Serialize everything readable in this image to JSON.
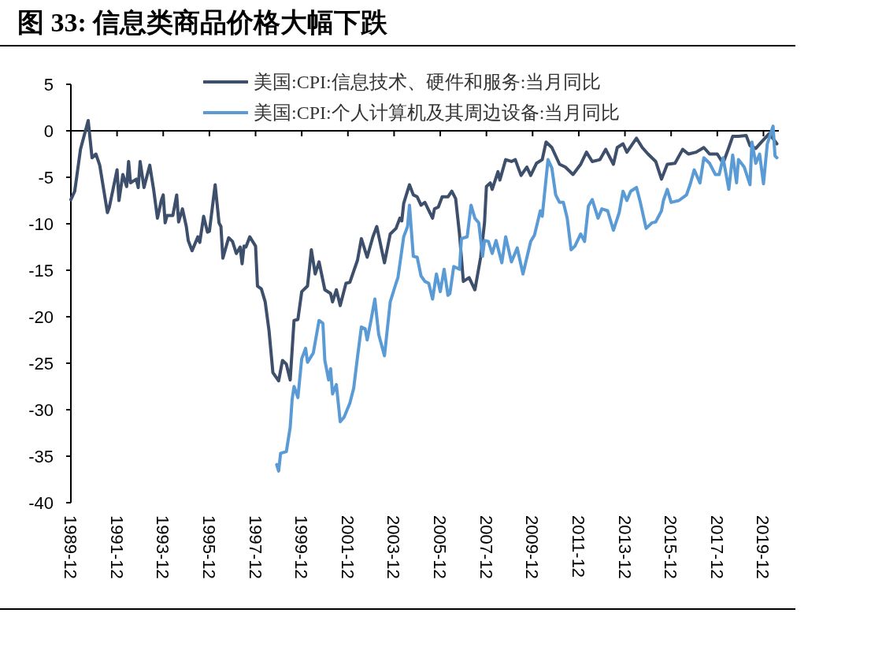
{
  "chart_data": {
    "type": "line",
    "title": "图 33: 信息类商品价格大幅下跌",
    "xlim": [
      "1989-12",
      "2020-08"
    ],
    "ylim": [
      -40,
      5
    ],
    "yticks": [
      -40,
      -35,
      -30,
      -25,
      -20,
      -15,
      -10,
      -5,
      0,
      5
    ],
    "xticks": [
      "1989-12",
      "1991-12",
      "1993-12",
      "1995-12",
      "1997-12",
      "1999-12",
      "2001-12",
      "2003-12",
      "2005-12",
      "2007-12",
      "2009-12",
      "2011-12",
      "2013-12",
      "2015-12",
      "2017-12",
      "2019-12"
    ],
    "legend": "top",
    "marker": "none",
    "line_style": "solid",
    "series": [
      {
        "name": "美国:CPI:信息技术、硬件和服务:当月同比",
        "color": "#3d4f6b",
        "x": [
          "1989-12",
          "1990-02",
          "1990-05",
          "1990-09",
          "1990-11",
          "1991-01",
          "1991-03",
          "1991-07",
          "1991-08",
          "1991-12",
          "1992-01",
          "1992-03",
          "1992-05",
          "1992-06",
          "1992-07",
          "1992-10",
          "1992-11",
          "1992-12",
          "1993-02",
          "1993-05",
          "1993-07",
          "1993-09",
          "1993-11",
          "1993-12",
          "1994-01",
          "1994-02",
          "1994-05",
          "1994-07",
          "1994-08",
          "1994-10",
          "1994-12",
          "1995-01",
          "1995-03",
          "1995-06",
          "1995-07",
          "1995-09",
          "1995-11",
          "1995-12",
          "1996-03",
          "1996-05",
          "1996-06",
          "1996-07",
          "1996-10",
          "1996-12",
          "1997-02",
          "1997-04",
          "1997-05",
          "1997-06",
          "1997-07",
          "1997-09",
          "1997-12",
          "1998-01",
          "1998-03",
          "1998-05",
          "1998-07",
          "1998-09",
          "1998-12",
          "1999-02",
          "1999-04",
          "1999-06",
          "1999-08",
          "1999-10",
          "1999-12",
          "2000-03",
          "2000-05",
          "2000-07",
          "2000-09",
          "2000-12",
          "2001-03",
          "2001-04",
          "2001-06",
          "2001-08",
          "2001-11",
          "2002-01",
          "2002-05",
          "2002-07",
          "2002-10",
          "2003-01",
          "2003-03",
          "2003-07",
          "2003-10",
          "2004-01",
          "2004-03",
          "2004-04",
          "2004-05",
          "2004-08",
          "2004-10",
          "2004-12",
          "2005-02",
          "2005-04",
          "2005-08",
          "2005-09",
          "2005-11",
          "2006-01",
          "2006-04",
          "2006-06",
          "2006-08",
          "2006-10",
          "2006-12",
          "2007-03",
          "2007-06",
          "2007-09",
          "2007-11",
          "2007-12",
          "2008-02",
          "2008-03",
          "2008-06",
          "2008-07",
          "2008-10",
          "2009-01",
          "2009-03",
          "2009-06",
          "2009-09",
          "2009-11",
          "2010-02",
          "2010-05",
          "2010-07",
          "2010-10",
          "2011-02",
          "2011-05",
          "2011-09",
          "2012-01",
          "2012-04",
          "2012-07",
          "2012-11",
          "2013-02",
          "2013-06",
          "2013-08",
          "2013-11",
          "2014-01",
          "2014-06",
          "2014-09",
          "2014-12",
          "2015-04",
          "2015-07",
          "2015-10",
          "2016-02",
          "2016-06",
          "2016-09",
          "2017-01",
          "2017-05",
          "2017-08",
          "2017-12",
          "2018-03",
          "2018-06",
          "2018-08",
          "2018-11",
          "2019-03",
          "2019-05",
          "2019-08",
          "2019-11",
          "2020-03",
          "2020-07"
        ],
        "values": [
          -7.4,
          -6.5,
          -2.0,
          1.1,
          -2.9,
          -2.5,
          -3.7,
          -8.8,
          -8.2,
          -4.2,
          -7.5,
          -4.7,
          -6.0,
          -3.3,
          -5.6,
          -5.2,
          -6.1,
          -3.3,
          -6.1,
          -3.7,
          -6.3,
          -9.4,
          -7.5,
          -6.9,
          -9.9,
          -9.1,
          -9.1,
          -6.9,
          -9.8,
          -8.4,
          -10.3,
          -11.8,
          -12.9,
          -11.4,
          -12.0,
          -9.2,
          -10.9,
          -10.8,
          -5.8,
          -9.9,
          -10.3,
          -13.7,
          -11.5,
          -11.9,
          -13.2,
          -12.5,
          -14.3,
          -12.4,
          -12.5,
          -11.4,
          -12.4,
          -16.7,
          -17.0,
          -18.4,
          -21.5,
          -26.0,
          -26.9,
          -24.7,
          -25.1,
          -26.8,
          -20.4,
          -20.3,
          -17.3,
          -16.7,
          -12.8,
          -15.4,
          -14.1,
          -17.1,
          -17.5,
          -18.4,
          -17.1,
          -18.8,
          -16.4,
          -16.3,
          -13.9,
          -11.6,
          -13.6,
          -11.4,
          -10.3,
          -14.2,
          -11.1,
          -10.5,
          -9.4,
          -9.7,
          -7.8,
          -5.8,
          -6.9,
          -7.1,
          -8.0,
          -7.7,
          -9.4,
          -8.4,
          -8.2,
          -7.1,
          -7.1,
          -6.5,
          -7.3,
          -11.1,
          -16.2,
          -15.8,
          -17.1,
          -13.6,
          -9.9,
          -6.0,
          -5.6,
          -6.3,
          -4.4,
          -5.3,
          -3.1,
          -3.3,
          -3.1,
          -4.8,
          -3.9,
          -4.8,
          -3.5,
          -3.1,
          -1.2,
          -1.8,
          -3.6,
          -3.9,
          -4.7,
          -3.6,
          -2.3,
          -3.3,
          -3.1,
          -2.0,
          -3.6,
          -1.8,
          -1.4,
          -2.3,
          -0.8,
          -1.8,
          -2.5,
          -3.3,
          -5.2,
          -3.6,
          -3.5,
          -2.0,
          -2.5,
          -2.3,
          -1.8,
          -2.5,
          -2.5,
          -3.5,
          -1.8,
          -0.6,
          -0.6,
          -0.5,
          -1.6,
          -1.9,
          -1.2,
          -0.3,
          -1.4
        ]
      },
      {
        "name": "美国:CPI:个人计算机及其周边设备:当月同比",
        "color": "#5b9bd5",
        "x": [
          "1998-11",
          "1998-12",
          "1999-01",
          "1999-04",
          "1999-06",
          "1999-07",
          "1999-08",
          "1999-10",
          "1999-12",
          "2000-02",
          "2000-03",
          "2000-06",
          "2000-09",
          "2000-11",
          "2000-12",
          "2001-02",
          "2001-03",
          "2001-04",
          "2001-06",
          "2001-08",
          "2001-10",
          "2002-01",
          "2002-03",
          "2002-05",
          "2002-07",
          "2002-09",
          "2002-10",
          "2002-12",
          "2003-02",
          "2003-04",
          "2003-07",
          "2003-10",
          "2004-01",
          "2004-02",
          "2004-05",
          "2004-07",
          "2004-08",
          "2004-10",
          "2004-12",
          "2005-02",
          "2005-04",
          "2005-06",
          "2005-08",
          "2005-10",
          "2005-12",
          "2006-02",
          "2006-04",
          "2006-05",
          "2006-07",
          "2006-10",
          "2006-11",
          "2007-02",
          "2007-04",
          "2007-06",
          "2007-08",
          "2007-10",
          "2007-11",
          "2008-01",
          "2008-03",
          "2008-05",
          "2008-08",
          "2008-10",
          "2009-01",
          "2009-04",
          "2009-07",
          "2009-11",
          "2010-01",
          "2010-04",
          "2010-05",
          "2010-08",
          "2010-10",
          "2010-12",
          "2011-02",
          "2011-04",
          "2011-06",
          "2011-08",
          "2011-10",
          "2012-01",
          "2012-03",
          "2012-05",
          "2012-07",
          "2012-10",
          "2012-12",
          "2013-03",
          "2013-06",
          "2013-09",
          "2013-11",
          "2014-01",
          "2014-03",
          "2014-06",
          "2014-08",
          "2014-11",
          "2015-02",
          "2015-04",
          "2015-07",
          "2015-08",
          "2015-10",
          "2015-12",
          "2016-04",
          "2016-08",
          "2016-10",
          "2016-12",
          "2017-03",
          "2017-05",
          "2017-08",
          "2017-11",
          "2018-01",
          "2018-03",
          "2018-06",
          "2018-08",
          "2018-10",
          "2018-11",
          "2019-02",
          "2019-05",
          "2019-06",
          "2019-08",
          "2019-10",
          "2019-12",
          "2020-02",
          "2020-05",
          "2020-06",
          "2020-07"
        ],
        "values": [
          -35.9,
          -36.6,
          -34.7,
          -34.5,
          -31.9,
          -28.9,
          -27.5,
          -28.7,
          -24.5,
          -23.4,
          -24.9,
          -23.9,
          -20.4,
          -20.7,
          -24.7,
          -26.8,
          -25.6,
          -28.3,
          -27.3,
          -31.3,
          -30.8,
          -29.3,
          -27.7,
          -24.3,
          -21.1,
          -21.3,
          -22.5,
          -20.4,
          -18.1,
          -21.9,
          -24.2,
          -18.4,
          -16.4,
          -15.8,
          -11.4,
          -10.3,
          -8.0,
          -13.5,
          -13.6,
          -15.6,
          -16.2,
          -16.4,
          -18.1,
          -15.4,
          -17.3,
          -14.9,
          -17.7,
          -17.5,
          -14.6,
          -14.9,
          -11.6,
          -11.4,
          -8.0,
          -9.4,
          -9.9,
          -13.5,
          -11.8,
          -11.9,
          -13.2,
          -11.8,
          -14.2,
          -11.4,
          -14.1,
          -12.6,
          -15.4,
          -11.9,
          -11.2,
          -8.6,
          -9.2,
          -3.1,
          -4.0,
          -6.9,
          -7.7,
          -7.7,
          -9.4,
          -12.8,
          -12.4,
          -11.1,
          -11.9,
          -8.1,
          -7.4,
          -9.4,
          -8.4,
          -8.6,
          -10.7,
          -8.8,
          -6.5,
          -7.5,
          -6.5,
          -6.1,
          -7.7,
          -10.5,
          -9.9,
          -9.8,
          -8.6,
          -7.5,
          -6.3,
          -7.7,
          -7.5,
          -6.9,
          -5.7,
          -4.2,
          -5.6,
          -2.9,
          -3.5,
          -4.7,
          -4.7,
          -2.9,
          -6.3,
          -2.6,
          -5.6,
          -3.1,
          -3.9,
          -5.8,
          -1.2,
          -3.5,
          -2.5,
          -5.7,
          -1.4,
          0.5,
          -2.7,
          -2.9
        ]
      }
    ]
  }
}
